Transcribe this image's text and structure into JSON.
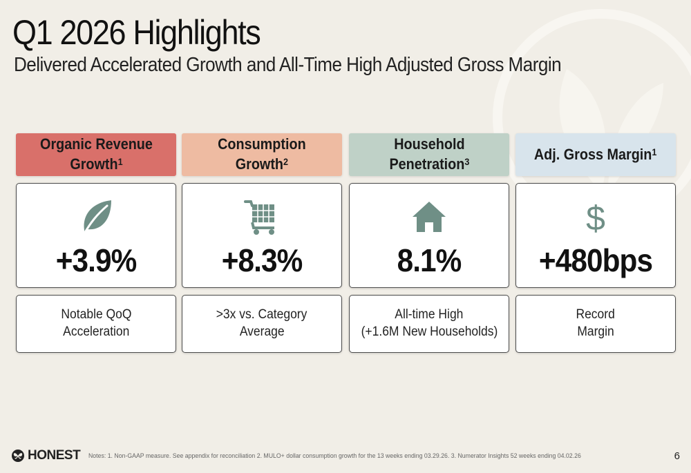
{
  "slide": {
    "title": "Q1 2026 Highlights",
    "subtitle": "Delivered Accelerated Growth and All-Time High Adjusted Gross Margin",
    "page_number": "6"
  },
  "cards": [
    {
      "header_line1": "Organic Revenue",
      "header_line2": "Growth",
      "header_sup": "1",
      "header_color": "#d9706a",
      "icon": "leaf-icon",
      "value": "+3.9%",
      "desc_line1": "Notable QoQ",
      "desc_line2": "Acceleration"
    },
    {
      "header_line1": "Consumption",
      "header_line2": "Growth",
      "header_sup": "2",
      "header_color": "#eebba2",
      "icon": "cart-icon",
      "value": "+8.3%",
      "desc_line1": ">3x vs. Category",
      "desc_line2": "Average"
    },
    {
      "header_line1": "Household",
      "header_line2": "Penetration",
      "header_sup": "3",
      "header_color": "#bfd1c7",
      "icon": "house-icon",
      "value": "8.1%",
      "desc_line1": "All-time High",
      "desc_line2": "(+1.6M New Households)"
    },
    {
      "header_line1": "Adj. Gross Margin",
      "header_line2": "",
      "header_sup": "1",
      "header_color": "#d8e4ec",
      "icon": "dollar-icon",
      "value": "+480bps",
      "desc_line1": "Record",
      "desc_line2": "Margin"
    }
  ],
  "footer": {
    "brand": "HONEST",
    "notes": "Notes: 1. Non-GAAP measure.  See appendix for reconciliation  2. MULO+ dollar consumption growth for the 13 weeks ending 03.29.26. 3. Numerator Insights 52 weeks ending 04.02.26"
  },
  "colors": {
    "icon": "#6f8f86",
    "background": "#f1eee7"
  }
}
